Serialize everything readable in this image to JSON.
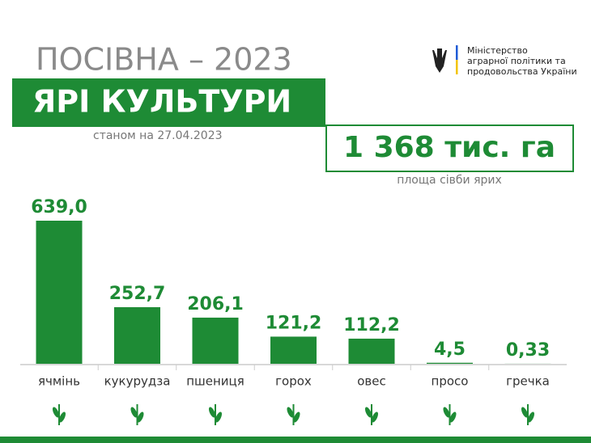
{
  "chart_data": {
    "type": "bar",
    "title": "ПОСІВНА – 2023",
    "subtitle": "ЯРІ КУЛЬТУРИ",
    "date": "станом на 27.04.2023",
    "total": "1 368 тис. га",
    "total_caption": "площа сівби ярих",
    "ministry": [
      "Міністерство",
      "аграрної політики та",
      "продовольства України"
    ],
    "categories": [
      "ячмінь",
      "кукурудза",
      "пшениця",
      "горох",
      "овес",
      "просо",
      "гречка"
    ],
    "values": [
      639.0,
      252.7,
      206.1,
      121.2,
      112.2,
      4.5,
      0.33
    ],
    "value_labels": [
      "639,0",
      "252,7",
      "206,1",
      "121,2",
      "112,2",
      "4,5",
      "0,33"
    ],
    "color": "#1e8b35"
  }
}
